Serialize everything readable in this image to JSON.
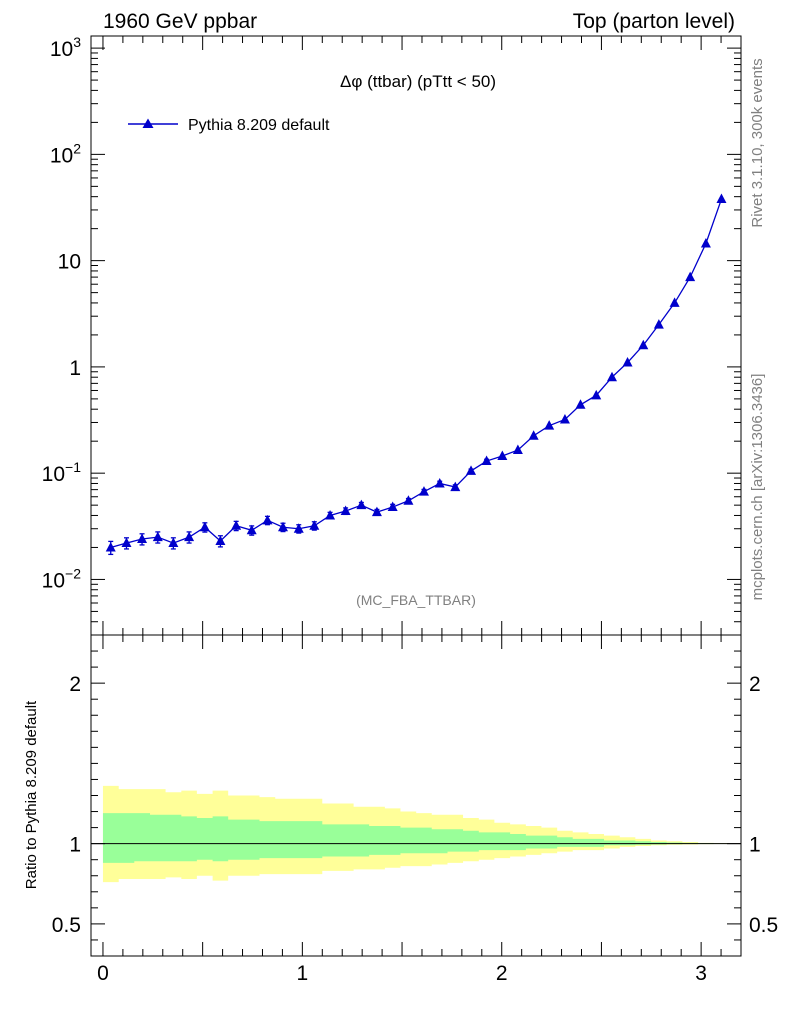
{
  "header": {
    "left": "1960 GeV ppbar",
    "right": "Top (parton level)"
  },
  "side_text": {
    "upper": "Rivet 3.1.10,  300k events",
    "lower": "mcplots.cern.ch [arXiv:1306.3436]"
  },
  "colors": {
    "series": "#0000cc",
    "band_outer": "#ffff99",
    "band_inner": "#99ff99",
    "reference_line": "#000000"
  },
  "chart_data": [
    {
      "type": "line",
      "title": "Δφ (ttbar) (pTtt < 50)",
      "annotation": "(MC_FBA_TTBAR)",
      "xlabel": "",
      "ylabel": "",
      "y_scale": "log",
      "xlim": [
        -0.06,
        3.2
      ],
      "ylim": [
        0.003,
        1300
      ],
      "y_ticks": [
        {
          "value": 0.01,
          "label": "10^-2"
        },
        {
          "value": 0.1,
          "label": "10^-1"
        },
        {
          "value": 1,
          "label": "1"
        },
        {
          "value": 10,
          "label": "10"
        },
        {
          "value": 100,
          "label": "10^2"
        },
        {
          "value": 1000,
          "label": "10^3"
        }
      ],
      "legend": "top-left",
      "series": [
        {
          "name": "Pythia 8.209 default",
          "marker": "triangle",
          "x": [
            0.039,
            0.118,
            0.196,
            0.275,
            0.353,
            0.432,
            0.511,
            0.589,
            0.668,
            0.746,
            0.825,
            0.903,
            0.982,
            1.06,
            1.139,
            1.217,
            1.296,
            1.374,
            1.453,
            1.532,
            1.61,
            1.689,
            1.767,
            1.846,
            1.924,
            2.003,
            2.081,
            2.16,
            2.238,
            2.317,
            2.395,
            2.474,
            2.553,
            2.631,
            2.71,
            2.788,
            2.867,
            2.945,
            3.024,
            3.102
          ],
          "values": [
            0.02,
            0.022,
            0.024,
            0.025,
            0.022,
            0.025,
            0.031,
            0.023,
            0.032,
            0.029,
            0.036,
            0.031,
            0.03,
            0.032,
            0.04,
            0.044,
            0.05,
            0.043,
            0.048,
            0.055,
            0.067,
            0.08,
            0.074,
            0.105,
            0.13,
            0.145,
            0.165,
            0.225,
            0.28,
            0.32,
            0.44,
            0.54,
            0.8,
            1.1,
            1.6,
            2.5,
            4.0,
            7.0,
            14.5,
            38.0
          ],
          "errors_rel": [
            0.14,
            0.12,
            0.12,
            0.12,
            0.12,
            0.12,
            0.1,
            0.12,
            0.1,
            0.1,
            0.09,
            0.09,
            0.09,
            0.09,
            0.07,
            0.07,
            0.06,
            0.06,
            0.06,
            0.05,
            0.05,
            0.05,
            0.05,
            0.04,
            0.04,
            0.03,
            0.03,
            0.03,
            0.03,
            0.02,
            0.02,
            0.02,
            0.02,
            0.01,
            0.01,
            0.01,
            0.01,
            0.01,
            0.01,
            0.01
          ]
        }
      ]
    },
    {
      "type": "area",
      "xlabel": "",
      "ylabel": "Ratio to Pythia 8.209 default",
      "xlim": [
        -0.06,
        3.2
      ],
      "ylim": [
        0.3,
        2.3
      ],
      "x_ticks": [
        0,
        1,
        2,
        3
      ],
      "y_ticks": [
        0.5,
        1,
        2
      ],
      "bin_edges": [
        0.0,
        0.079,
        0.157,
        0.236,
        0.314,
        0.393,
        0.471,
        0.55,
        0.628,
        0.707,
        0.785,
        0.864,
        0.942,
        1.021,
        1.1,
        1.178,
        1.257,
        1.335,
        1.414,
        1.492,
        1.571,
        1.649,
        1.728,
        1.806,
        1.885,
        1.963,
        2.042,
        2.121,
        2.199,
        2.278,
        2.356,
        2.435,
        2.513,
        2.592,
        2.67,
        2.749,
        2.827,
        2.906,
        2.985,
        3.063,
        3.142
      ],
      "outer_band": {
        "high": [
          1.36,
          1.34,
          1.34,
          1.34,
          1.32,
          1.33,
          1.31,
          1.33,
          1.3,
          1.3,
          1.29,
          1.28,
          1.28,
          1.28,
          1.25,
          1.25,
          1.23,
          1.23,
          1.22,
          1.2,
          1.19,
          1.18,
          1.18,
          1.16,
          1.15,
          1.13,
          1.12,
          1.11,
          1.1,
          1.08,
          1.07,
          1.06,
          1.05,
          1.04,
          1.03,
          1.02,
          1.015,
          1.01,
          1.005,
          1.003
        ],
        "low": [
          0.76,
          0.78,
          0.78,
          0.78,
          0.79,
          0.78,
          0.8,
          0.77,
          0.8,
          0.8,
          0.81,
          0.81,
          0.81,
          0.81,
          0.83,
          0.83,
          0.84,
          0.84,
          0.85,
          0.86,
          0.86,
          0.87,
          0.88,
          0.89,
          0.9,
          0.91,
          0.92,
          0.93,
          0.94,
          0.95,
          0.96,
          0.96,
          0.97,
          0.98,
          0.985,
          0.99,
          0.993,
          0.995,
          0.997,
          0.998
        ]
      },
      "inner_band": {
        "high": [
          1.19,
          1.19,
          1.19,
          1.18,
          1.18,
          1.17,
          1.16,
          1.17,
          1.15,
          1.15,
          1.14,
          1.14,
          1.14,
          1.14,
          1.12,
          1.12,
          1.12,
          1.11,
          1.11,
          1.1,
          1.1,
          1.09,
          1.09,
          1.08,
          1.07,
          1.07,
          1.06,
          1.05,
          1.05,
          1.04,
          1.03,
          1.03,
          1.02,
          1.02,
          1.015,
          1.01,
          1.007,
          1.005,
          1.003,
          1.002
        ],
        "low": [
          0.88,
          0.88,
          0.89,
          0.89,
          0.89,
          0.89,
          0.9,
          0.89,
          0.9,
          0.9,
          0.91,
          0.91,
          0.91,
          0.91,
          0.92,
          0.92,
          0.92,
          0.93,
          0.93,
          0.94,
          0.94,
          0.94,
          0.95,
          0.95,
          0.96,
          0.96,
          0.96,
          0.97,
          0.97,
          0.98,
          0.98,
          0.98,
          0.99,
          0.99,
          0.993,
          0.995,
          0.997,
          0.998,
          0.999,
          0.999
        ]
      },
      "reference": 1
    }
  ]
}
